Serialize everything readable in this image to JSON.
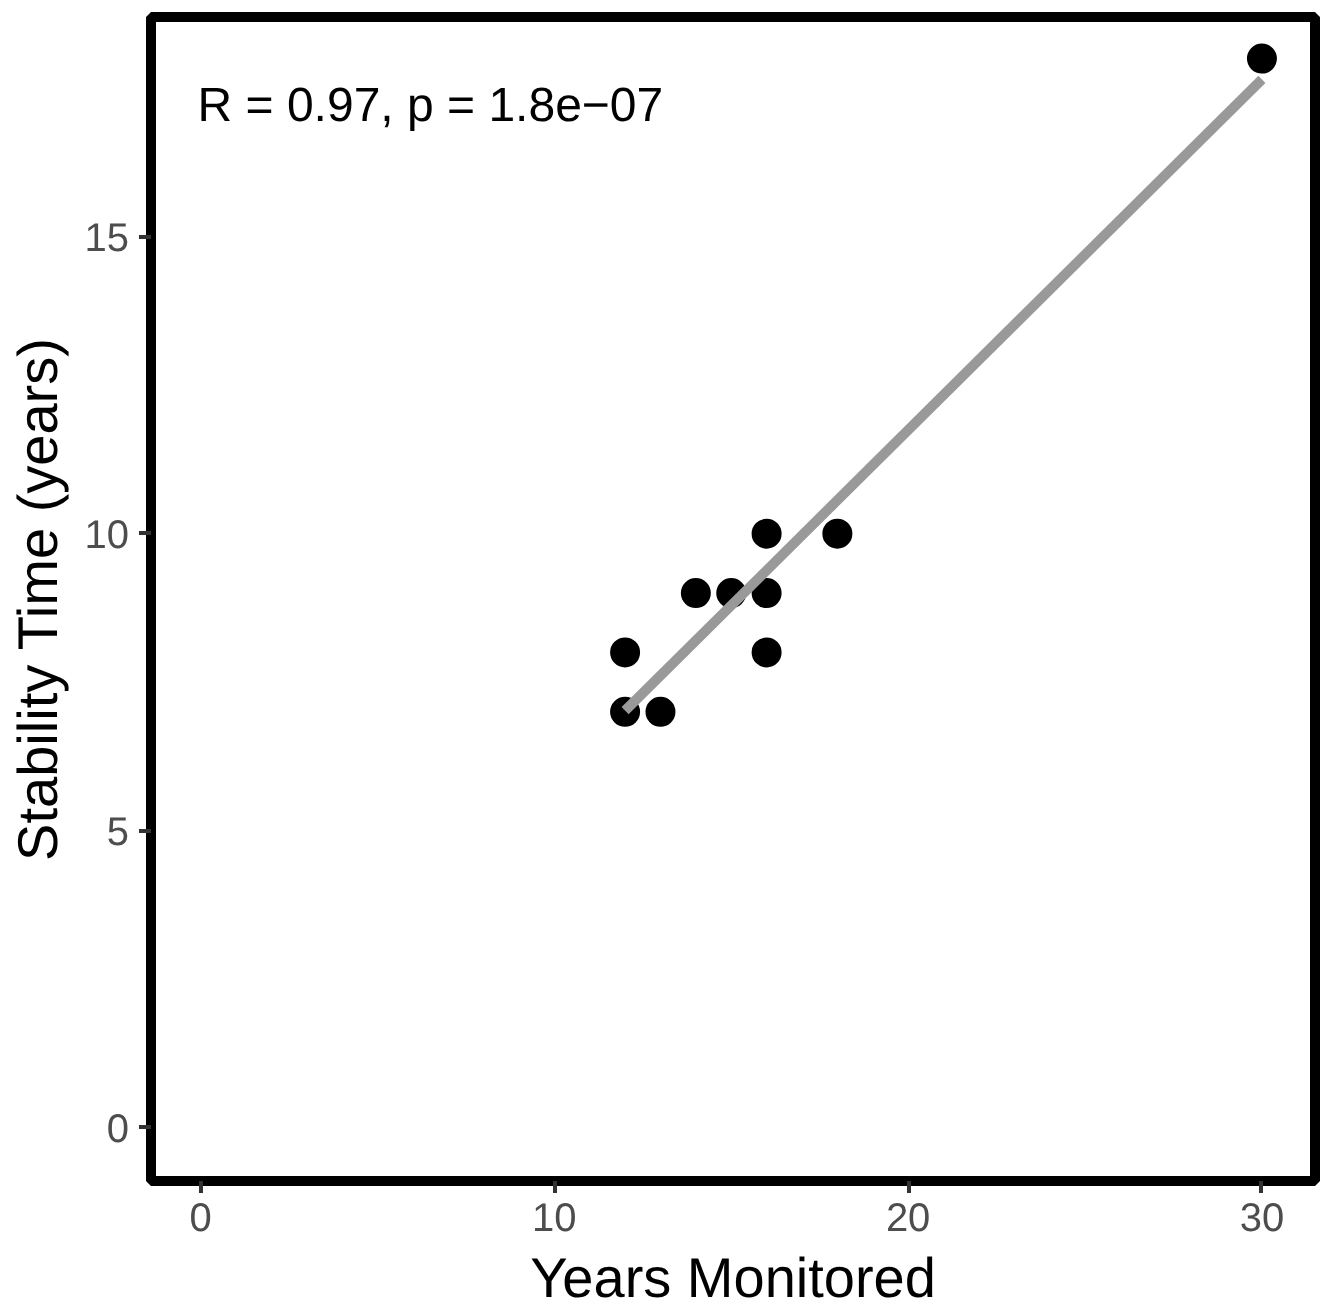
{
  "chart_data": {
    "type": "scatter",
    "xlabel": "Years Monitored",
    "ylabel": "Stability Time (years)",
    "xlim": [
      -1.4,
      31.5
    ],
    "ylim": [
      -0.9,
      18.7
    ],
    "xticks": [
      0,
      10,
      20,
      30
    ],
    "yticks": [
      0,
      5,
      10,
      15
    ],
    "grid": false,
    "annotations": [
      "R = 0.97, p = 1.8e−07"
    ],
    "series": [
      {
        "color": "#000000",
        "marker": "circle",
        "x": [
          12,
          12,
          13,
          14,
          15,
          16,
          16,
          16,
          18,
          30
        ],
        "values": [
          7,
          8,
          7,
          9,
          9,
          9,
          8,
          10,
          10,
          18
        ]
      },
      {
        "type": "line",
        "color": "#999999",
        "x": [
          12,
          30
        ],
        "values": [
          7.02,
          17.65
        ]
      }
    ]
  }
}
